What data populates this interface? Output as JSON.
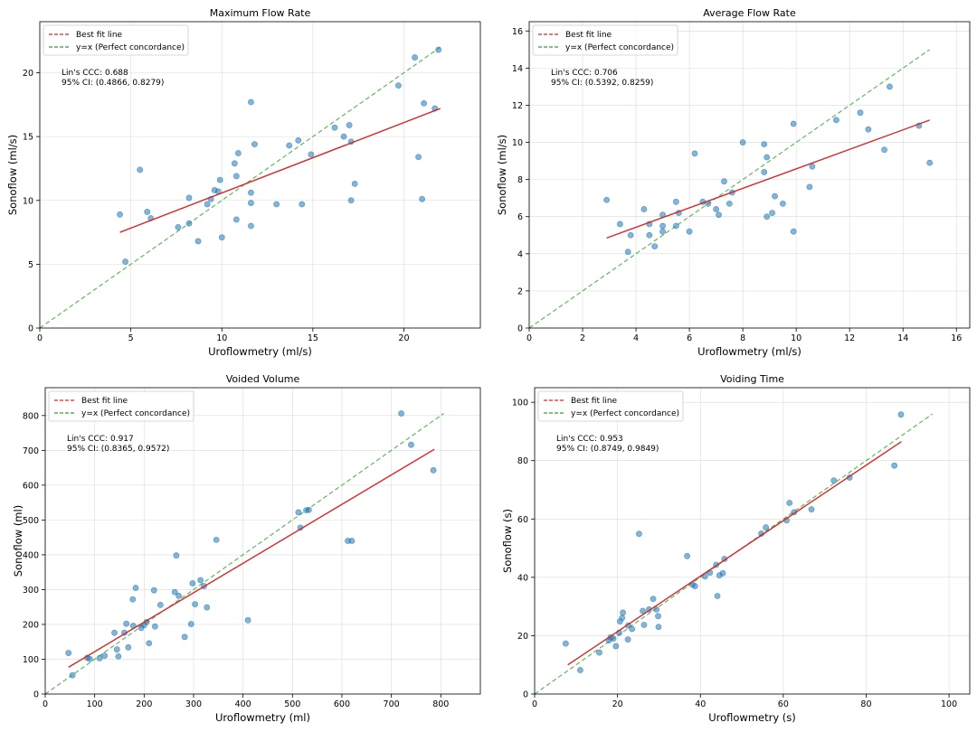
{
  "figure": {
    "background": "#ffffff"
  },
  "style": {
    "point_color": "#1f77b4",
    "fit_color": "#d62728",
    "identity_color": "#2ca02c",
    "grid_color": "#b0b0b0"
  },
  "chart_data": [
    {
      "type": "scatter",
      "title": "Maximum Flow Rate",
      "xlabel": "Uroflowmetry (ml/s)",
      "ylabel": "Sonoflow (ml/s)",
      "xlim": [
        0,
        24.2
      ],
      "ylim": [
        0,
        24
      ],
      "xticks": [
        0,
        5,
        10,
        15,
        20
      ],
      "yticks": [
        0,
        5,
        10,
        15,
        20
      ],
      "grid": true,
      "legend": {
        "placement": "top-left",
        "entries": [
          "Best fit line",
          "y=x (Perfect concordance)"
        ]
      },
      "annotation": [
        "Lin's CCC: 0.688",
        "95% CI: (0.4866, 0.8279)"
      ],
      "fit_line": [
        [
          4.4,
          7.5
        ],
        [
          22.0,
          17.2
        ]
      ],
      "identity_line": [
        [
          0,
          0
        ],
        [
          22.0,
          22.0
        ]
      ],
      "points": [
        [
          4.4,
          8.9
        ],
        [
          4.7,
          5.2
        ],
        [
          5.5,
          12.4
        ],
        [
          5.9,
          9.1
        ],
        [
          6.1,
          8.6
        ],
        [
          7.6,
          7.9
        ],
        [
          8.2,
          8.2
        ],
        [
          8.2,
          10.2
        ],
        [
          8.7,
          6.8
        ],
        [
          9.2,
          9.7
        ],
        [
          9.4,
          10.1
        ],
        [
          9.6,
          10.8
        ],
        [
          9.8,
          10.7
        ],
        [
          9.9,
          11.6
        ],
        [
          10.0,
          7.1
        ],
        [
          10.7,
          12.9
        ],
        [
          10.9,
          13.7
        ],
        [
          10.8,
          8.5
        ],
        [
          10.8,
          11.9
        ],
        [
          11.6,
          10.6
        ],
        [
          11.6,
          8.0
        ],
        [
          11.6,
          9.8
        ],
        [
          11.6,
          17.7
        ],
        [
          11.8,
          14.4
        ],
        [
          13.0,
          9.7
        ],
        [
          13.7,
          14.3
        ],
        [
          14.2,
          14.7
        ],
        [
          14.4,
          9.7
        ],
        [
          14.9,
          13.6
        ],
        [
          16.2,
          15.7
        ],
        [
          16.7,
          15.0
        ],
        [
          17.0,
          15.9
        ],
        [
          17.1,
          10.0
        ],
        [
          17.1,
          14.6
        ],
        [
          17.3,
          11.3
        ],
        [
          19.7,
          19.0
        ],
        [
          20.6,
          21.2
        ],
        [
          20.8,
          13.4
        ],
        [
          21.0,
          10.1
        ],
        [
          21.1,
          17.6
        ],
        [
          21.7,
          17.2
        ],
        [
          21.9,
          21.8
        ]
      ]
    },
    {
      "type": "scatter",
      "title": "Average Flow Rate",
      "xlabel": "Uroflowmetry (ml/s)",
      "ylabel": "Sonoflow (ml/s)",
      "xlim": [
        0,
        16.5
      ],
      "ylim": [
        0,
        16.5
      ],
      "xticks": [
        0,
        2,
        4,
        6,
        8,
        10,
        12,
        14,
        16
      ],
      "yticks": [
        0,
        2,
        4,
        6,
        8,
        10,
        12,
        14,
        16
      ],
      "grid": true,
      "legend": {
        "placement": "top-left",
        "entries": [
          "Best fit line",
          "y=x (Perfect concordance)"
        ]
      },
      "annotation": [
        "Lin's CCC: 0.706",
        "95% CI: (0.5392, 0.8259)"
      ],
      "fit_line": [
        [
          2.9,
          4.85
        ],
        [
          15.0,
          11.2
        ]
      ],
      "identity_line": [
        [
          0,
          0
        ],
        [
          15.0,
          15.0
        ]
      ],
      "points": [
        [
          2.9,
          6.9
        ],
        [
          3.4,
          5.6
        ],
        [
          3.7,
          4.1
        ],
        [
          3.8,
          5.0
        ],
        [
          4.3,
          6.4
        ],
        [
          4.5,
          5.0
        ],
        [
          4.5,
          5.6
        ],
        [
          4.7,
          4.4
        ],
        [
          5.0,
          5.2
        ],
        [
          5.0,
          6.1
        ],
        [
          5.0,
          5.5
        ],
        [
          5.5,
          5.5
        ],
        [
          5.5,
          6.8
        ],
        [
          5.6,
          6.2
        ],
        [
          6.0,
          5.2
        ],
        [
          6.2,
          9.4
        ],
        [
          6.5,
          6.8
        ],
        [
          6.7,
          6.7
        ],
        [
          7.0,
          6.4
        ],
        [
          7.1,
          6.1
        ],
        [
          7.3,
          7.9
        ],
        [
          7.5,
          6.7
        ],
        [
          7.6,
          7.3
        ],
        [
          8.0,
          10.0
        ],
        [
          8.8,
          9.9
        ],
        [
          8.8,
          8.4
        ],
        [
          8.9,
          6.0
        ],
        [
          8.9,
          9.2
        ],
        [
          9.1,
          6.2
        ],
        [
          9.2,
          7.1
        ],
        [
          9.5,
          6.7
        ],
        [
          9.9,
          11.0
        ],
        [
          9.9,
          5.2
        ],
        [
          10.5,
          7.6
        ],
        [
          10.6,
          8.7
        ],
        [
          11.5,
          11.2
        ],
        [
          12.4,
          11.6
        ],
        [
          12.7,
          10.7
        ],
        [
          13.3,
          9.6
        ],
        [
          13.5,
          13.0
        ],
        [
          14.6,
          10.9
        ],
        [
          15.0,
          8.9
        ]
      ]
    },
    {
      "type": "scatter",
      "title": "Voided Volume",
      "xlabel": "Uroflowmetry (ml)",
      "ylabel": "Sonoflow (ml)",
      "xlim": [
        0,
        880
      ],
      "ylim": [
        0,
        880
      ],
      "xticks": [
        0,
        100,
        200,
        300,
        400,
        500,
        600,
        700,
        800
      ],
      "yticks": [
        0,
        100,
        200,
        300,
        400,
        500,
        600,
        700,
        800
      ],
      "grid": true,
      "legend": {
        "placement": "top-left",
        "entries": [
          "Best fit line",
          "y=x (Perfect concordance)"
        ]
      },
      "annotation": [
        "Lin's CCC: 0.917",
        "95% CI: (0.8365, 0.9572)"
      ],
      "fit_line": [
        [
          47,
          77
        ],
        [
          787,
          703
        ]
      ],
      "identity_line": [
        [
          0,
          0
        ],
        [
          806,
          806
        ]
      ],
      "points": [
        [
          47,
          118
        ],
        [
          55,
          54
        ],
        [
          85,
          104
        ],
        [
          90,
          101
        ],
        [
          110,
          103
        ],
        [
          120,
          110
        ],
        [
          140,
          176
        ],
        [
          145,
          128
        ],
        [
          148,
          108
        ],
        [
          160,
          176
        ],
        [
          164,
          202
        ],
        [
          168,
          134
        ],
        [
          177,
          272
        ],
        [
          178,
          196
        ],
        [
          183,
          305
        ],
        [
          194,
          190
        ],
        [
          200,
          198
        ],
        [
          205,
          207
        ],
        [
          210,
          146
        ],
        [
          220,
          298
        ],
        [
          222,
          194
        ],
        [
          233,
          256
        ],
        [
          262,
          293
        ],
        [
          265,
          398
        ],
        [
          270,
          282
        ],
        [
          282,
          164
        ],
        [
          295,
          201
        ],
        [
          298,
          318
        ],
        [
          303,
          258
        ],
        [
          314,
          327
        ],
        [
          321,
          310
        ],
        [
          327,
          249
        ],
        [
          346,
          443
        ],
        [
          410,
          212
        ],
        [
          512,
          522
        ],
        [
          516,
          478
        ],
        [
          528,
          528
        ],
        [
          533,
          529
        ],
        [
          612,
          440
        ],
        [
          620,
          440
        ],
        [
          720,
          806
        ],
        [
          740,
          716
        ],
        [
          785,
          643
        ]
      ]
    },
    {
      "type": "scatter",
      "title": "Voiding Time",
      "xlabel": "Uroflowmetry (s)",
      "ylabel": "Sonoflow (s)",
      "xlim": [
        0,
        105
      ],
      "ylim": [
        0,
        105
      ],
      "xticks": [
        0,
        20,
        40,
        60,
        80,
        100
      ],
      "yticks": [
        0,
        20,
        40,
        60,
        80,
        100
      ],
      "grid": true,
      "legend": {
        "placement": "top-left",
        "entries": [
          "Best fit line",
          "y=x (Perfect concordance)"
        ]
      },
      "annotation": [
        "Lin's CCC: 0.953",
        "95% CI: (0.8749, 0.9849)"
      ],
      "fit_line": [
        [
          8,
          10
        ],
        [
          88.5,
          86.5
        ]
      ],
      "identity_line": [
        [
          0,
          0
        ],
        [
          96,
          96
        ]
      ],
      "points": [
        [
          7.5,
          17.3
        ],
        [
          11.0,
          8.2
        ],
        [
          15.6,
          14.2
        ],
        [
          17.9,
          18.4
        ],
        [
          18.3,
          19.4
        ],
        [
          19.0,
          19.0
        ],
        [
          19.6,
          16.4
        ],
        [
          20.4,
          21.0
        ],
        [
          20.6,
          24.9
        ],
        [
          21.1,
          26.1
        ],
        [
          21.3,
          27.9
        ],
        [
          22.5,
          18.7
        ],
        [
          22.6,
          23.5
        ],
        [
          23.5,
          22.3
        ],
        [
          25.2,
          54.9
        ],
        [
          26.1,
          28.5
        ],
        [
          26.4,
          23.7
        ],
        [
          27.6,
          29.0
        ],
        [
          28.6,
          32.6
        ],
        [
          29.4,
          29.0
        ],
        [
          29.8,
          26.7
        ],
        [
          29.9,
          23.0
        ],
        [
          36.8,
          47.3
        ],
        [
          38.1,
          37.5
        ],
        [
          38.7,
          37.0
        ],
        [
          41.1,
          40.3
        ],
        [
          42.3,
          41.6
        ],
        [
          43.8,
          44.3
        ],
        [
          44.1,
          33.6
        ],
        [
          44.6,
          40.7
        ],
        [
          45.4,
          41.4
        ],
        [
          45.8,
          46.3
        ],
        [
          54.7,
          55.0
        ],
        [
          55.8,
          57.1
        ],
        [
          60.8,
          59.5
        ],
        [
          62.6,
          62.3
        ],
        [
          61.5,
          65.5
        ],
        [
          66.8,
          63.3
        ],
        [
          72.2,
          73.2
        ],
        [
          76.0,
          74.2
        ],
        [
          86.8,
          78.3
        ],
        [
          88.4,
          95.8
        ]
      ]
    }
  ]
}
